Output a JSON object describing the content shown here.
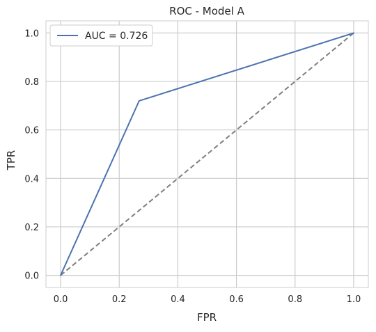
{
  "chart_data": {
    "type": "line",
    "title": "ROC - Model A",
    "xlabel": "FPR",
    "ylabel": "TPR",
    "xlim": [
      -0.05,
      1.05
    ],
    "ylim": [
      -0.05,
      1.05
    ],
    "xticks": [
      0.0,
      0.2,
      0.4,
      0.6,
      0.8,
      1.0
    ],
    "yticks": [
      0.0,
      0.2,
      0.4,
      0.6,
      0.8,
      1.0
    ],
    "xtick_labels": [
      "0.0",
      "0.2",
      "0.4",
      "0.6",
      "0.8",
      "1.0"
    ],
    "ytick_labels": [
      "0.0",
      "0.2",
      "0.4",
      "0.6",
      "0.8",
      "1.0"
    ],
    "grid": true,
    "legend_position": "upper-left",
    "series": [
      {
        "name": "AUC = 0.726",
        "x": [
          0.0,
          0.268,
          1.0
        ],
        "y": [
          0.0,
          0.72,
          1.0
        ],
        "color": "#4c72b0",
        "style": "solid"
      },
      {
        "x": [
          0.0,
          1.0
        ],
        "y": [
          0.0,
          1.0
        ],
        "color": "#7f7f7f",
        "style": "dashed"
      }
    ]
  }
}
